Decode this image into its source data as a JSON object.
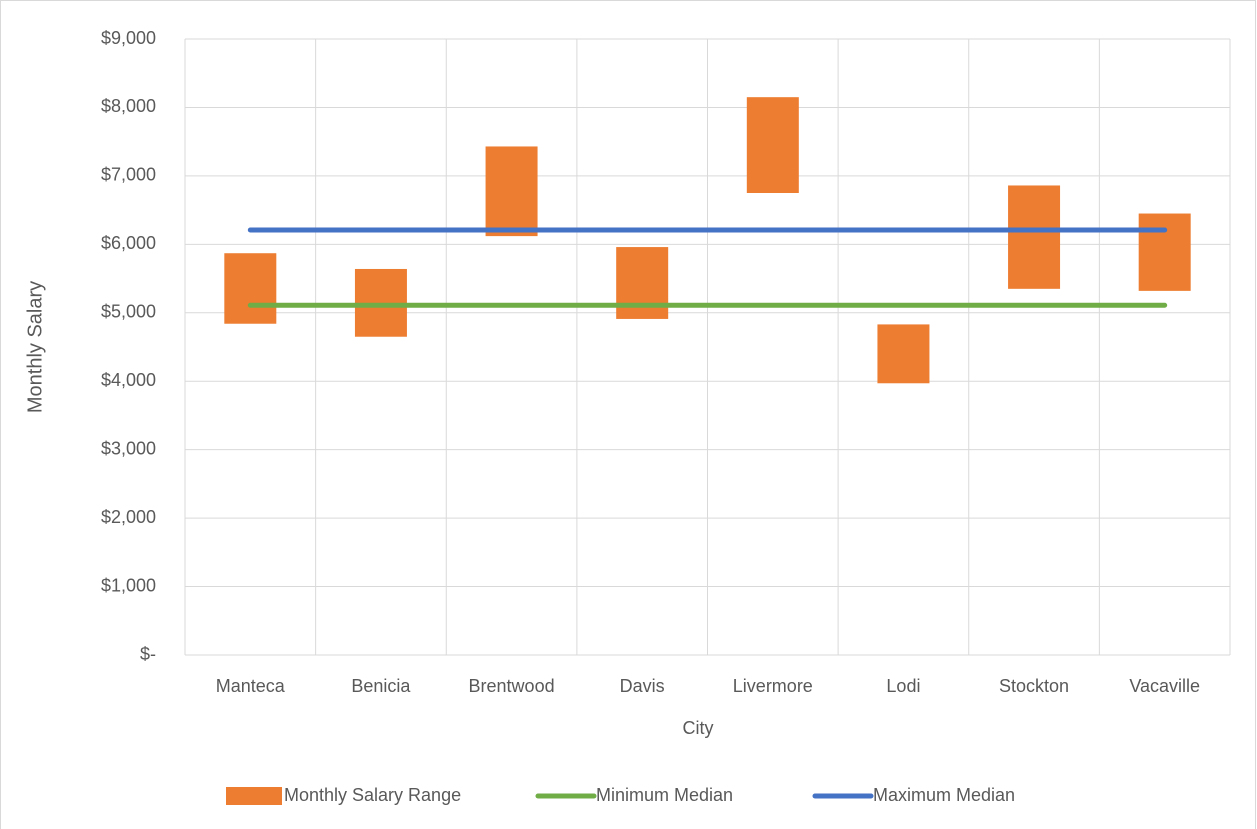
{
  "chart_data": {
    "type": "bar",
    "xlabel": "City",
    "ylabel": "Monthly Salary",
    "categories": [
      "Manteca",
      "Benicia",
      "Brentwood",
      "Davis",
      "Livermore",
      "Lodi",
      "Stockton",
      "Vacaville"
    ],
    "series": [
      {
        "name": "Monthly Salary Range",
        "type": "range",
        "color": "#ed7d31",
        "low": [
          4840,
          4650,
          6120,
          4910,
          6750,
          3970,
          5350,
          5320
        ],
        "high": [
          5870,
          5640,
          7430,
          5960,
          8150,
          4830,
          6860,
          6450
        ]
      },
      {
        "name": "Minimum Median",
        "type": "line",
        "color": "#70ad47",
        "values": [
          5110,
          5110,
          5110,
          5110,
          5110,
          5110,
          5110,
          5110
        ]
      },
      {
        "name": "Maximum Median",
        "type": "line",
        "color": "#4472c4",
        "values": [
          6210,
          6210,
          6210,
          6210,
          6210,
          6210,
          6210,
          6210
        ]
      }
    ],
    "ylim": [
      0,
      9000
    ],
    "yticks": [
      {
        "value": 0,
        "label": "$-"
      },
      {
        "value": 1000,
        "label": "$1,000"
      },
      {
        "value": 2000,
        "label": "$2,000"
      },
      {
        "value": 3000,
        "label": "$3,000"
      },
      {
        "value": 4000,
        "label": "$4,000"
      },
      {
        "value": 5000,
        "label": "$5,000"
      },
      {
        "value": 6000,
        "label": "$6,000"
      },
      {
        "value": 7000,
        "label": "$7,000"
      },
      {
        "value": 8000,
        "label": "$8,000"
      },
      {
        "value": 9000,
        "label": "$9,000"
      }
    ],
    "grid": true,
    "legend": "bottom"
  }
}
